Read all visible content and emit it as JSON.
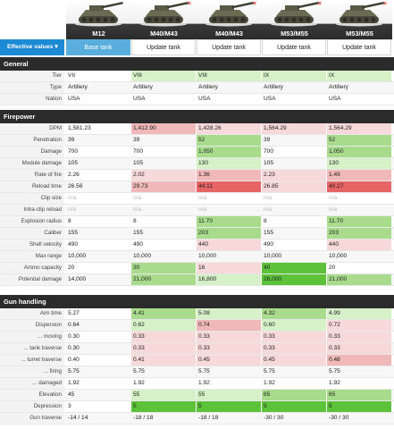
{
  "tanks": [
    {
      "name": "M12",
      "closable": false
    },
    {
      "name": "M40/M43",
      "closable": true
    },
    {
      "name": "M40/M43",
      "closable": true
    },
    {
      "name": "M53/M55",
      "closable": true
    },
    {
      "name": "M53/M55",
      "closable": true
    }
  ],
  "close_glyph": "×",
  "toolbar": {
    "effective_label": "Effective values ▾",
    "buttons": [
      "Base tank",
      "Update tank",
      "Update tank",
      "Update tank",
      "Update tank"
    ]
  },
  "colors": {
    "green_light": "#d6f0c8",
    "green_mid": "#a8dc8c",
    "green_strong": "#5cc23a",
    "red_light": "#f7d9d9",
    "red_mid": "#f0b8b8",
    "red_strong": "#e66464",
    "accent": "#1d8ad6"
  },
  "sections": [
    {
      "title": "General",
      "rows": [
        {
          "label": "Tier",
          "values": [
            "VII",
            "VIII",
            "VIII",
            "IX",
            "IX"
          ],
          "colors": [
            "",
            "green_light",
            "green_light",
            "green_light",
            "green_light"
          ]
        },
        {
          "label": "Type",
          "values": [
            "Artillery",
            "Artillery",
            "Artillery",
            "Artillery",
            "Artillery"
          ],
          "colors": [
            "",
            "",
            "",
            "",
            ""
          ]
        },
        {
          "label": "Nation",
          "values": [
            "USA",
            "USA",
            "USA",
            "USA",
            "USA"
          ],
          "colors": [
            "",
            "",
            "",
            "",
            ""
          ]
        }
      ]
    },
    {
      "title": "Firepower",
      "rows": [
        {
          "label": "DPM",
          "values": [
            "1,581.23",
            "1,412.90",
            "1,428.26",
            "1,564.29",
            "1,564.29"
          ],
          "colors": [
            "",
            "red_mid",
            "red_light",
            "red_light",
            "red_light"
          ]
        },
        {
          "label": "Penetration",
          "values": [
            "39",
            "39",
            "52",
            "39",
            "52"
          ],
          "colors": [
            "",
            "",
            "green_mid",
            "",
            "green_mid"
          ]
        },
        {
          "label": "Damage",
          "values": [
            "700",
            "700",
            "1,050",
            "700",
            "1,050"
          ],
          "colors": [
            "",
            "",
            "green_mid",
            "",
            "green_mid"
          ]
        },
        {
          "label": "Module damage",
          "values": [
            "105",
            "105",
            "130",
            "105",
            "130"
          ],
          "colors": [
            "",
            "",
            "green_light",
            "",
            "green_light"
          ]
        },
        {
          "label": "Rate of fire",
          "values": [
            "2.26",
            "2.02",
            "1.36",
            "2.23",
            "1.49"
          ],
          "colors": [
            "",
            "red_light",
            "red_mid",
            "red_light",
            "red_mid"
          ]
        },
        {
          "label": "Reload time",
          "values": [
            "26.56",
            "29.73",
            "44.11",
            "26.85",
            "40.27"
          ],
          "colors": [
            "",
            "red_mid",
            "red_strong",
            "red_light",
            "red_strong"
          ]
        },
        {
          "label": "Clip size",
          "values": [
            "n/a",
            "n/a",
            "n/a",
            "n/a",
            "n/a"
          ],
          "colors": [
            "",
            "",
            "",
            "",
            ""
          ],
          "na": true
        },
        {
          "label": "Intra-clip reload",
          "values": [
            "n/a",
            "n/a",
            "n/a",
            "n/a",
            "n/a"
          ],
          "colors": [
            "",
            "",
            "",
            "",
            ""
          ],
          "na": true
        },
        {
          "label": "Explosion radius",
          "values": [
            "8",
            "8",
            "11.70",
            "8",
            "11.70"
          ],
          "colors": [
            "",
            "",
            "green_mid",
            "",
            "green_mid"
          ]
        },
        {
          "label": "Caliber",
          "values": [
            "155",
            "155",
            "203",
            "155",
            "203"
          ],
          "colors": [
            "",
            "",
            "green_mid",
            "",
            "green_mid"
          ]
        },
        {
          "label": "Shell velocity",
          "values": [
            "490",
            "490",
            "440",
            "490",
            "440"
          ],
          "colors": [
            "",
            "",
            "red_light",
            "",
            "red_light"
          ]
        },
        {
          "label": "Max range",
          "values": [
            "10,000",
            "10,000",
            "10,000",
            "10,000",
            "10,000"
          ],
          "colors": [
            "",
            "",
            "",
            "",
            ""
          ]
        },
        {
          "label": "Ammo capacity",
          "values": [
            "20",
            "30",
            "16",
            "40",
            "20"
          ],
          "colors": [
            "",
            "green_mid",
            "red_light",
            "green_strong",
            ""
          ]
        },
        {
          "label": "Potential damage",
          "values": [
            "14,000",
            "21,000",
            "16,800",
            "28,000",
            "21,000"
          ],
          "colors": [
            "",
            "green_mid",
            "green_light",
            "green_strong",
            "green_mid"
          ]
        }
      ]
    },
    {
      "title": "Gun handling",
      "rows": [
        {
          "label": "Aim time",
          "values": [
            "5.27",
            "4.41",
            "5.08",
            "4.32",
            "4.99"
          ],
          "colors": [
            "",
            "green_mid",
            "green_light",
            "green_mid",
            "green_light"
          ]
        },
        {
          "label": "Dispersion",
          "values": [
            "0.64",
            "0.62",
            "0.74",
            "0.60",
            "0.72"
          ],
          "colors": [
            "",
            "green_light",
            "red_mid",
            "green_light",
            "red_light"
          ]
        },
        {
          "label": "... moving",
          "values": [
            "0.30",
            "0.33",
            "0.33",
            "0.33",
            "0.33"
          ],
          "colors": [
            "",
            "red_light",
            "red_light",
            "red_light",
            "red_light"
          ]
        },
        {
          "label": "... tank traverse",
          "values": [
            "0.30",
            "0.33",
            "0.33",
            "0.33",
            "0.33"
          ],
          "colors": [
            "",
            "red_light",
            "red_light",
            "red_light",
            "red_light"
          ]
        },
        {
          "label": "... turret traverse",
          "values": [
            "0.40",
            "0.41",
            "0.45",
            "0.45",
            "0.48"
          ],
          "colors": [
            "",
            "red_light",
            "red_light",
            "red_light",
            "red_mid"
          ]
        },
        {
          "label": "... firing",
          "values": [
            "5.75",
            "5.75",
            "5.75",
            "5.75",
            "5.75"
          ],
          "colors": [
            "",
            "",
            "",
            "",
            ""
          ]
        },
        {
          "label": "... damaged",
          "values": [
            "1.92",
            "1.92",
            "1.92",
            "1.92",
            "1.92"
          ],
          "colors": [
            "",
            "",
            "",
            "",
            ""
          ]
        },
        {
          "label": "Elevation",
          "values": [
            "45",
            "55",
            "55",
            "65",
            "65"
          ],
          "colors": [
            "",
            "green_light",
            "green_light",
            "green_mid",
            "green_mid"
          ]
        },
        {
          "label": "Depression",
          "values": [
            "3",
            "5",
            "5",
            "5",
            "5"
          ],
          "colors": [
            "",
            "green_strong",
            "green_strong",
            "green_strong",
            "green_strong"
          ]
        },
        {
          "label": "Gun traverse",
          "values": [
            "-14 / 14",
            "-18 / 18",
            "-18 / 18",
            "-30 / 30",
            "-30 / 30"
          ],
          "colors": [
            "",
            "",
            "",
            "",
            ""
          ]
        }
      ]
    }
  ]
}
